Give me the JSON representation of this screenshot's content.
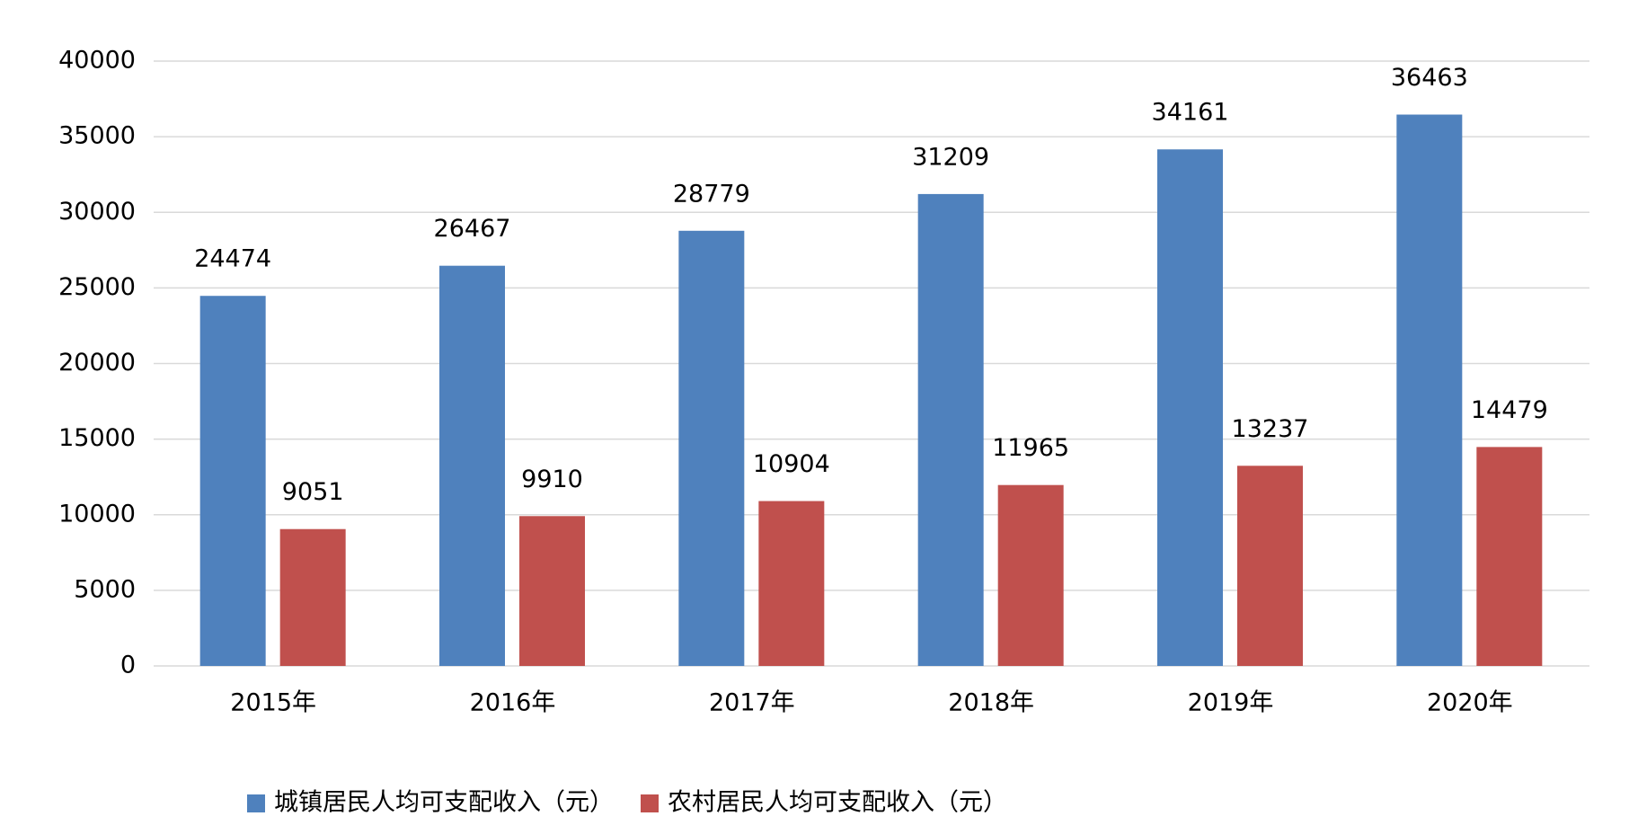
{
  "chart_data": {
    "type": "bar",
    "categories": [
      "2015年",
      "2016年",
      "2017年",
      "2018年",
      "2019年",
      "2020年"
    ],
    "series": [
      {
        "name": "城镇居民人均可支配收入（元）",
        "color": "#4f81bd",
        "values": [
          24474,
          26467,
          28779,
          31209,
          34161,
          36463
        ]
      },
      {
        "name": "农村居民人均可支配收入（元）",
        "color": "#c0504d",
        "values": [
          9051,
          9910,
          10904,
          11965,
          13237,
          14479
        ]
      }
    ],
    "ylim": [
      0,
      40000
    ],
    "yticks": [
      0,
      5000,
      10000,
      15000,
      20000,
      25000,
      30000,
      35000,
      40000
    ],
    "grid": true,
    "legend": "bottom"
  }
}
